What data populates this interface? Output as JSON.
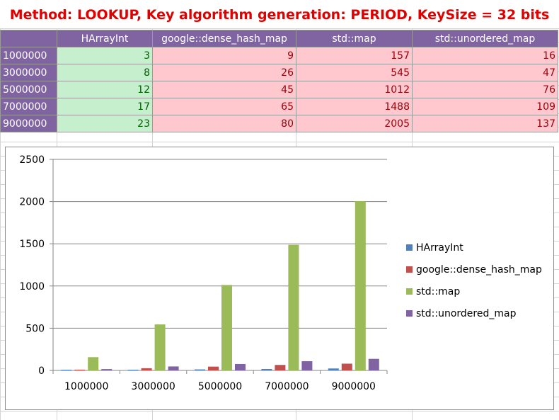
{
  "title": "Method: LOOKUP, Key algorithm generation: PERIOD, KeySize = 32 bits",
  "table": {
    "headers": [
      "",
      "HArrayInt",
      "google::dense_hash_map",
      "std::map",
      "std::unordered_map"
    ],
    "rows": [
      {
        "label": "1000000",
        "values": [
          "3",
          "9",
          "157",
          "16"
        ]
      },
      {
        "label": "3000000",
        "values": [
          "8",
          "26",
          "545",
          "47"
        ]
      },
      {
        "label": "5000000",
        "values": [
          "12",
          "45",
          "1012",
          "76"
        ]
      },
      {
        "label": "7000000",
        "values": [
          "17",
          "65",
          "1488",
          "109"
        ]
      },
      {
        "label": "9000000",
        "values": [
          "23",
          "80",
          "2005",
          "137"
        ]
      }
    ]
  },
  "chart_data": {
    "type": "bar",
    "title": "",
    "xlabel": "",
    "ylabel": "",
    "categories": [
      "1000000",
      "3000000",
      "5000000",
      "7000000",
      "9000000"
    ],
    "series": [
      {
        "name": "HArrayInt",
        "color": "#4f81bd",
        "values": [
          3,
          8,
          12,
          17,
          23
        ]
      },
      {
        "name": "google::dense_hash_map",
        "color": "#c0504d",
        "values": [
          9,
          26,
          45,
          65,
          80
        ]
      },
      {
        "name": "std::map",
        "color": "#9bbb59",
        "values": [
          157,
          545,
          1012,
          1488,
          2005
        ]
      },
      {
        "name": "std::unordered_map",
        "color": "#8064a2",
        "values": [
          16,
          47,
          76,
          109,
          137
        ]
      }
    ],
    "ylim": [
      0,
      2500
    ],
    "yticks": [
      "0",
      "500",
      "1000",
      "1500",
      "2000",
      "2500"
    ],
    "grid": true,
    "legend_position": "right"
  }
}
